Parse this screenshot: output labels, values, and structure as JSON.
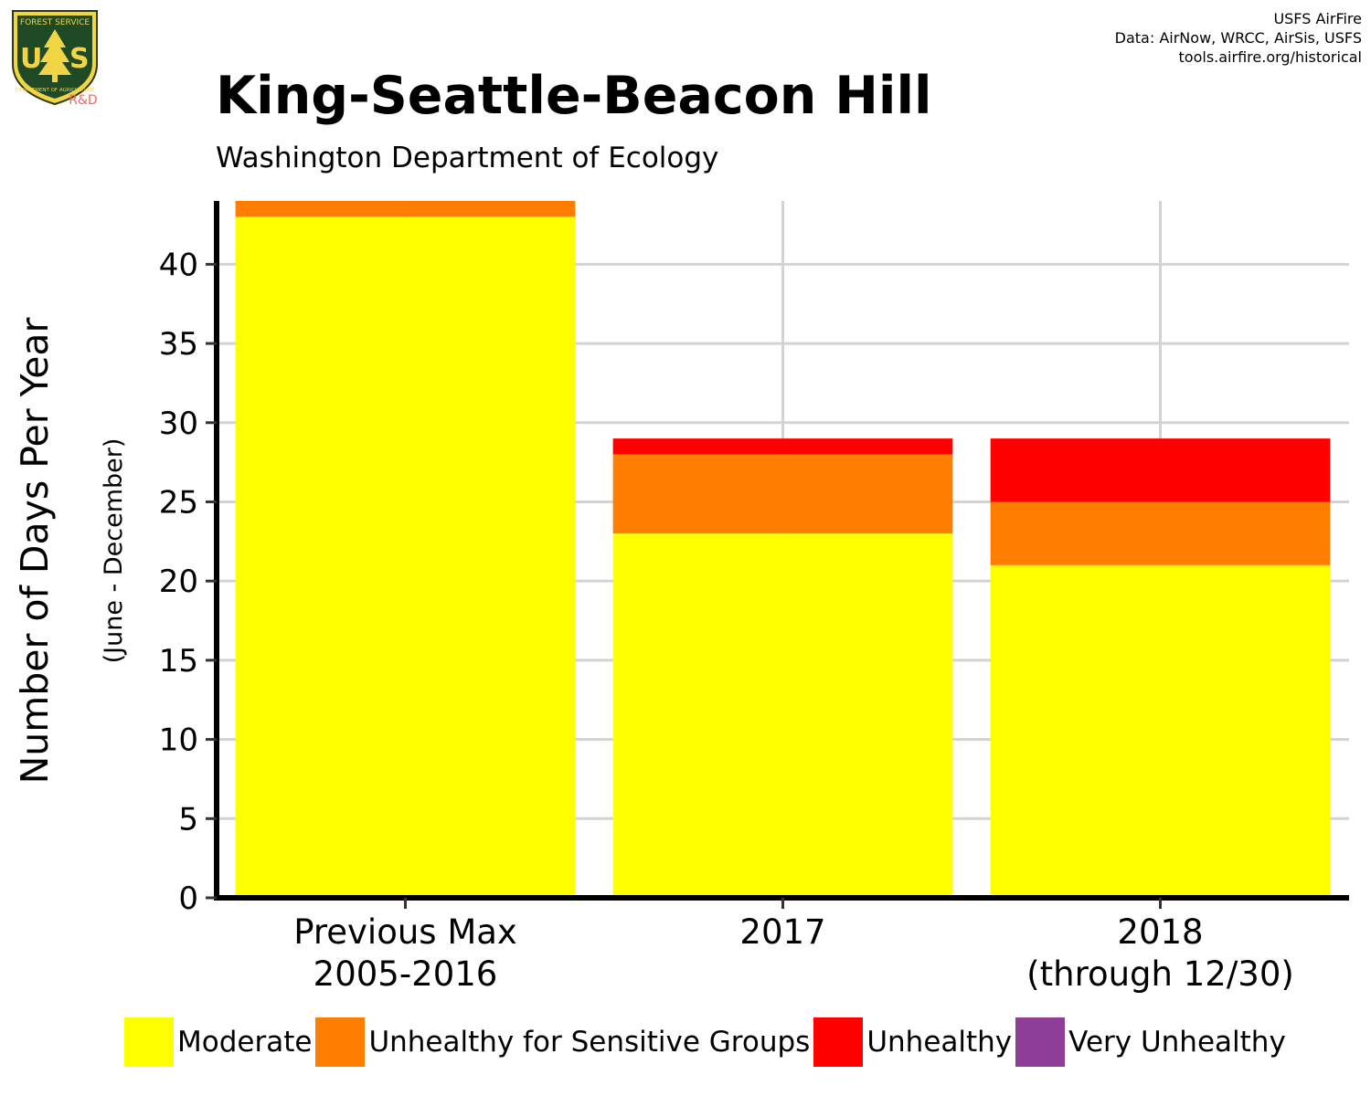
{
  "header": {
    "logo": {
      "top_text": "FOREST SERVICE",
      "letters": "US",
      "bottom_text": "DEPARTMENT OF AGRICULTURE",
      "rd_text": "R&D"
    },
    "credits": [
      "USFS AirFire",
      "Data: AirNow, WRCC, AirSis, USFS",
      "tools.airfire.org/historical"
    ],
    "title": "King-Seattle-Beacon Hill",
    "subtitle": "Washington Department of Ecology"
  },
  "chart_data": {
    "type": "bar",
    "stacked": true,
    "title": "King-Seattle-Beacon Hill",
    "subtitle": "Washington Department of Ecology",
    "ylabel": "Number of Days Per Year",
    "ylabel_sub": "(June - December)",
    "xlabel": "",
    "categories": [
      [
        "Previous Max",
        "2005-2016"
      ],
      [
        "2017"
      ],
      [
        "2018",
        "(through 12/30)"
      ]
    ],
    "series": [
      {
        "name": "Moderate",
        "color": "#FFFF00",
        "values": [
          43,
          23,
          21
        ]
      },
      {
        "name": "Unhealthy for Sensitive Groups",
        "color": "#FF7E00",
        "values": [
          1,
          5,
          4
        ]
      },
      {
        "name": "Unhealthy",
        "color": "#FF0000",
        "values": [
          0,
          1,
          4
        ]
      },
      {
        "name": "Very Unhealthy",
        "color": "#8F3F97",
        "values": [
          0,
          0,
          0
        ]
      }
    ],
    "yticks": [
      0,
      5,
      10,
      15,
      20,
      25,
      30,
      35,
      40
    ],
    "ylim": [
      0,
      44
    ],
    "grid": true,
    "legend_position": "bottom"
  }
}
